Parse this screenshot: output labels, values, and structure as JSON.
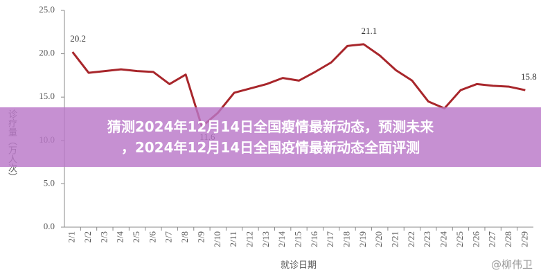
{
  "chart_data": {
    "type": "line",
    "y_label": "诊疗量（万人次）",
    "x_label": "就诊日期",
    "categories": [
      "2/1",
      "2/2",
      "2/3",
      "2/4",
      "2/5",
      "2/6",
      "2/7",
      "2/8",
      "2/9",
      "2/10",
      "2/11",
      "2/12",
      "2/13",
      "2/14",
      "2/15",
      "2/16",
      "2/17",
      "2/18",
      "2/19",
      "2/20",
      "2/21",
      "2/22",
      "2/23",
      "2/24",
      "2/25",
      "2/26",
      "2/27",
      "2/28",
      "2/29"
    ],
    "values": [
      20.2,
      17.8,
      18.0,
      18.2,
      18.0,
      17.9,
      16.5,
      17.6,
      11.6,
      13.2,
      15.5,
      16.0,
      16.5,
      17.2,
      16.9,
      17.9,
      19.0,
      20.9,
      21.1,
      19.8,
      18.1,
      16.9,
      14.5,
      13.7,
      15.8,
      16.5,
      16.3,
      16.2,
      15.8
    ],
    "value_labels": [
      "20.2",
      null,
      null,
      null,
      null,
      null,
      null,
      null,
      "11.6",
      null,
      null,
      null,
      null,
      null,
      null,
      null,
      null,
      null,
      "21.1",
      null,
      null,
      null,
      null,
      null,
      null,
      null,
      null,
      null,
      "15.8"
    ],
    "color": "#a8262b",
    "ylim": [
      0,
      25
    ],
    "yticks": [
      {
        "value": 0,
        "label": "0.0"
      },
      {
        "value": 5,
        "label": "5.0"
      },
      {
        "value": 10,
        "label": "10.0"
      },
      {
        "value": 15,
        "label": "15.0"
      },
      {
        "value": 20,
        "label": "20.0"
      },
      {
        "value": 25,
        "label": "25.0"
      }
    ]
  },
  "banner": {
    "line1": "猜测2024年12月14日全国瘦情最新动态，预测未来",
    "line2": "，2024年12月14日全国疫情最新动态全面评测"
  },
  "watermark": "@柳伟卫"
}
